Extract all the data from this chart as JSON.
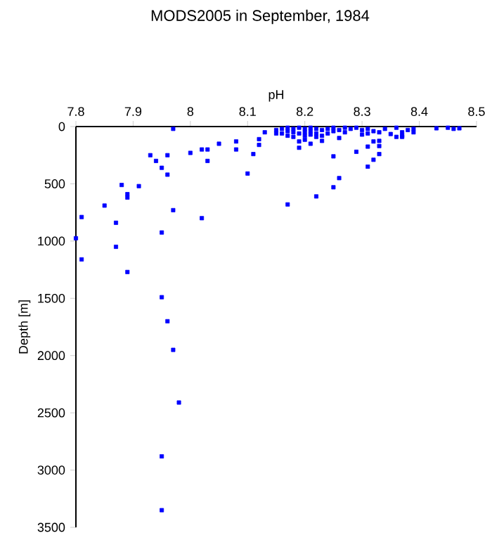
{
  "chart_data": {
    "type": "scatter",
    "title": "MODS2005 in September, 1984",
    "xlabel": "pH",
    "ylabel": "Depth [m]",
    "xlim": [
      7.8,
      8.5
    ],
    "xticks": [
      7.8,
      7.9,
      8,
      8.1,
      8.2,
      8.3,
      8.4,
      8.5
    ],
    "ylim": [
      3500,
      0
    ],
    "yticks": [
      0,
      500,
      1000,
      1500,
      2000,
      2500,
      3000,
      3500
    ],
    "marker": "square",
    "grid": false,
    "series": [
      {
        "color": "#0000ff",
        "x": [
          7.97,
          7.93,
          7.96,
          7.94,
          7.95,
          7.96,
          8.0,
          8.02,
          8.03,
          8.03,
          8.05,
          8.08,
          8.08,
          8.1,
          8.11,
          8.12,
          8.12,
          8.13,
          8.15,
          8.15,
          7.88,
          7.91,
          7.89,
          7.89,
          7.85,
          7.81,
          7.87,
          7.97,
          7.8,
          7.87,
          7.81,
          7.89,
          7.95,
          8.02,
          7.95,
          7.96,
          7.97,
          7.98,
          7.95,
          7.95,
          8.17,
          8.19,
          8.19,
          8.2,
          8.21,
          8.22,
          8.23,
          8.25,
          8.25,
          8.26,
          8.26,
          8.29,
          8.31,
          8.31,
          8.32,
          8.32,
          8.33,
          8.33,
          8.33,
          8.35,
          8.36,
          8.37,
          8.38,
          8.39,
          8.43,
          8.45,
          8.46,
          8.47,
          8.16,
          8.16,
          8.17,
          8.17,
          8.17,
          8.18,
          8.18,
          8.18,
          8.19,
          8.19,
          8.2,
          8.2,
          8.2,
          8.21,
          8.21,
          8.21,
          8.22,
          8.22,
          8.22,
          8.23,
          8.23,
          8.24,
          8.24,
          8.25,
          8.25,
          8.26,
          8.27,
          8.27,
          8.28,
          8.29,
          8.3,
          8.3,
          8.31,
          8.31,
          8.32,
          8.33,
          8.34,
          8.36,
          8.37,
          8.37,
          8.39
        ],
        "values": [
          20,
          250,
          250,
          300,
          360,
          420,
          230,
          200,
          200,
          300,
          150,
          130,
          200,
          410,
          240,
          160,
          110,
          50,
          30,
          60,
          510,
          520,
          590,
          620,
          690,
          790,
          840,
          730,
          975,
          1050,
          1160,
          1270,
          925,
          800,
          1490,
          1700,
          1950,
          2410,
          2880,
          3350,
          680,
          130,
          185,
          115,
          150,
          610,
          125,
          260,
          530,
          450,
          100,
          220,
          175,
          350,
          290,
          130,
          240,
          170,
          125,
          65,
          90,
          90,
          30,
          50,
          15,
          10,
          20,
          15,
          20,
          60,
          10,
          40,
          80,
          20,
          50,
          90,
          10,
          60,
          20,
          50,
          80,
          10,
          40,
          70,
          20,
          60,
          90,
          30,
          80,
          20,
          60,
          10,
          40,
          30,
          10,
          50,
          20,
          10,
          30,
          70,
          20,
          60,
          40,
          50,
          20,
          10,
          50,
          80,
          20
        ]
      }
    ]
  }
}
